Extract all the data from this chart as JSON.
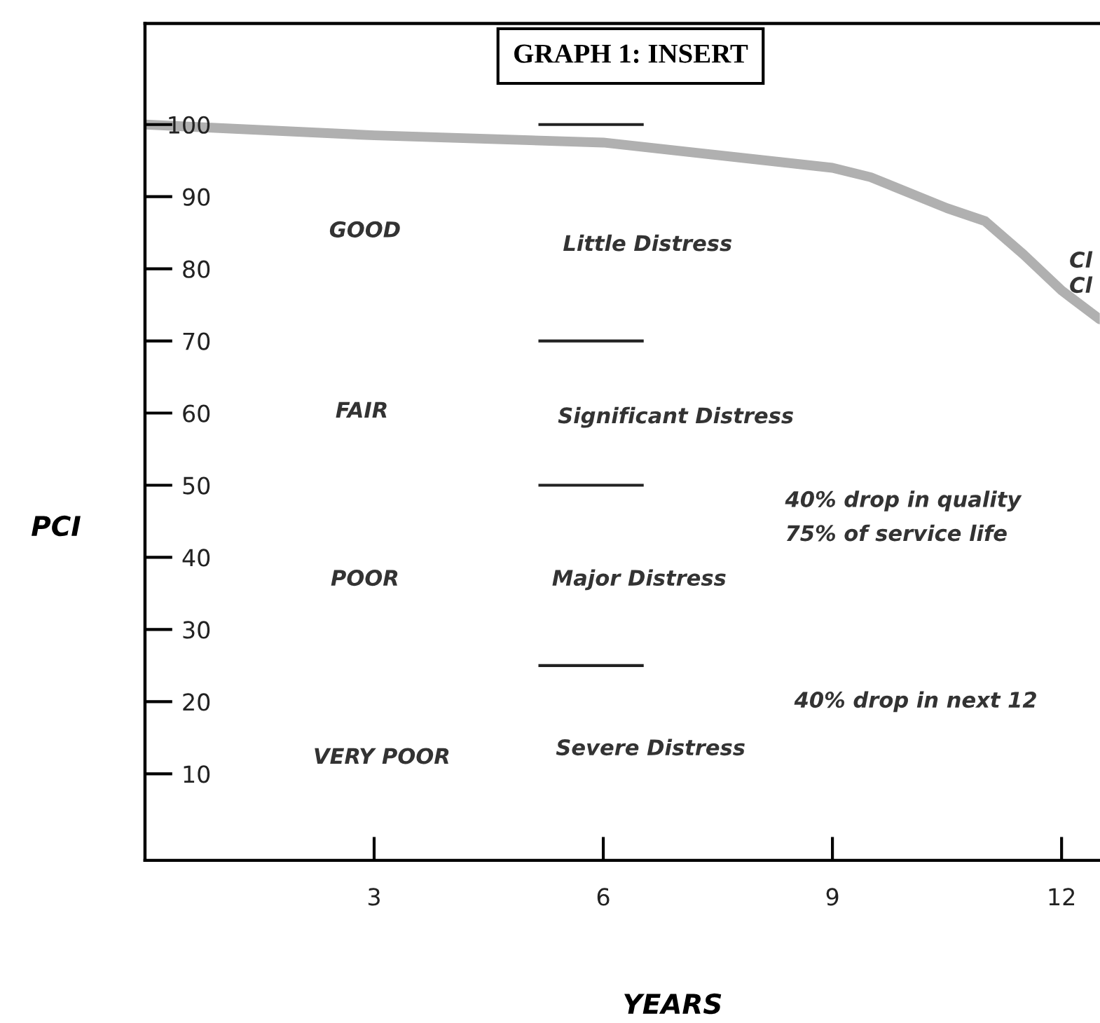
{
  "chart_data": {
    "type": "line",
    "title": "GRAPH 1: INSERT",
    "xlabel": "YEARS",
    "ylabel": "PCI",
    "x": [
      0,
      3,
      6,
      9,
      9.5,
      10.5,
      11,
      11.5,
      12,
      12.5
    ],
    "series": [
      {
        "color": "#b0b0b0",
        "values": [
          100,
          98.5,
          97.5,
          94,
          92.7,
          88.4,
          86.6,
          82,
          77,
          73
        ]
      }
    ],
    "xlim": [
      0,
      12.5
    ],
    "ylim": [
      -2,
      114
    ],
    "xticks": [
      3,
      6,
      9,
      12
    ],
    "yticks": [
      10,
      20,
      30,
      40,
      50,
      60,
      70,
      80,
      90,
      100
    ],
    "ref_lines": [
      {
        "axis": "y",
        "value": 100
      },
      {
        "axis": "y",
        "value": 70
      },
      {
        "axis": "y",
        "value": 50
      },
      {
        "axis": "y",
        "value": 25
      }
    ],
    "annotations": [
      "GOOD",
      "Little Distress",
      "FAIR",
      "Significant Distress",
      "POOR",
      "Major Distress",
      "VERY POOR",
      "Severe Distress",
      "40% drop in quality",
      "75% of service life",
      "40% drop in next 12",
      "Cl",
      "Cl"
    ],
    "grid": false,
    "legend": false,
    "marker": "none",
    "line_style": "solid"
  }
}
